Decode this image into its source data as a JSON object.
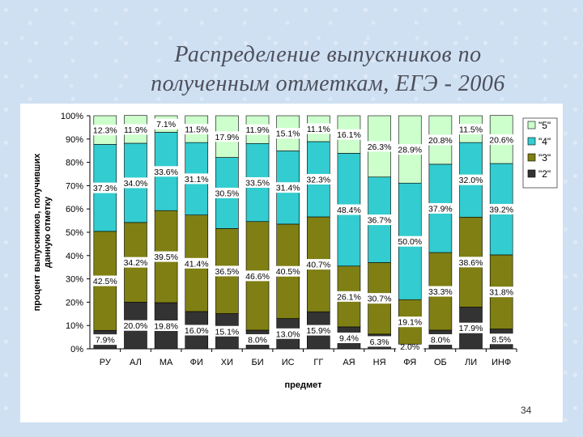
{
  "slide": {
    "title_line1": "Распределение выпускников по",
    "title_line2": "полученным отметкам, ЕГЭ - 2006",
    "page_number": "34"
  },
  "chart_data": {
    "type": "bar",
    "stacked": true,
    "percent": true,
    "title": "",
    "xlabel": "предмет",
    "ylabel": "процент выпускников, получивших данную отметку",
    "ylim": [
      0,
      100
    ],
    "yticks": [
      "0%",
      "10%",
      "20%",
      "30%",
      "40%",
      "50%",
      "60%",
      "70%",
      "80%",
      "90%",
      "100%"
    ],
    "categories": [
      "РУ",
      "АЛ",
      "МА",
      "ФИ",
      "ХИ",
      "БИ",
      "ИС",
      "ГГ",
      "АЯ",
      "НЯ",
      "ФЯ",
      "ОБ",
      "ЛИ",
      "ИНФ"
    ],
    "legend_position": "right",
    "grid": false,
    "series": [
      {
        "name": "\"2\"",
        "color": "#333333",
        "values": [
          7.9,
          20.0,
          19.8,
          16.0,
          15.1,
          8.0,
          13.0,
          15.9,
          9.4,
          6.3,
          2.0,
          8.0,
          17.9,
          8.5
        ],
        "labels": [
          "7.9%",
          "20.0%",
          "19.8%",
          "16.0%",
          "15.1%",
          "8.0%",
          "13.0%",
          "15.9%",
          "9.4%",
          "6.3%",
          "2.0%",
          "8.0%",
          "17.9%",
          "8.5%"
        ]
      },
      {
        "name": "\"3\"",
        "color": "#7f7f14",
        "values": [
          42.5,
          34.2,
          39.5,
          41.4,
          36.5,
          46.6,
          40.5,
          40.7,
          26.1,
          30.7,
          19.1,
          33.3,
          38.6,
          31.8
        ],
        "labels": [
          "42.5%",
          "34.2%",
          "39.5%",
          "41.4%",
          "36.5%",
          "46.6%",
          "40.5%",
          "40.7%",
          "26.1%",
          "30.7%",
          "19.1%",
          "33.3%",
          "38.6%",
          "31.8%"
        ]
      },
      {
        "name": "\"4\"",
        "color": "#33ccd0",
        "values": [
          37.3,
          34.0,
          33.6,
          31.1,
          30.5,
          33.5,
          31.4,
          32.3,
          48.4,
          36.7,
          50.0,
          37.9,
          32.0,
          39.2
        ],
        "labels": [
          "37.3%",
          "34.0%",
          "33.6%",
          "31.1%",
          "30.5%",
          "33.5%",
          "31.4%",
          "32.3%",
          "48.4%",
          "36.7%",
          "50.0%",
          "37.9%",
          "32.0%",
          "39.2%"
        ]
      },
      {
        "name": "\"5\"",
        "color": "#ccffcc",
        "values": [
          12.3,
          11.9,
          7.1,
          11.5,
          17.9,
          11.9,
          15.1,
          11.1,
          16.1,
          26.3,
          28.9,
          20.8,
          11.5,
          20.6
        ],
        "labels": [
          "12.3%",
          "11.9%",
          "7.1%",
          "11.5%",
          "17.9%",
          "11.9%",
          "15.1%",
          "11.1%",
          "16.1%",
          "26.3%",
          "28.9%",
          "20.8%",
          "11.5%",
          "20.6%"
        ]
      }
    ]
  }
}
